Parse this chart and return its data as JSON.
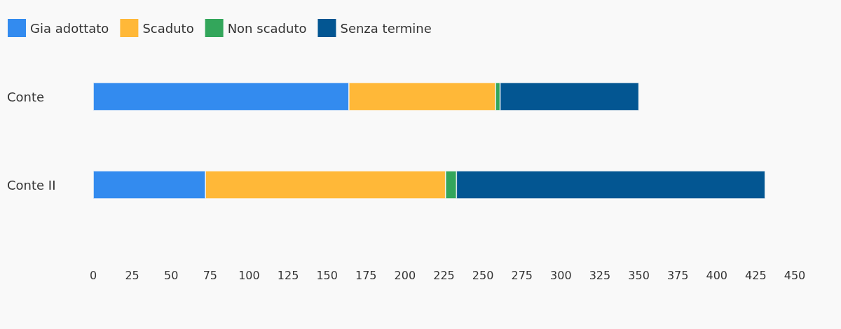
{
  "chart_data": {
    "type": "bar",
    "orientation": "horizontal",
    "stacked": true,
    "categories": [
      "Conte",
      "Conte II"
    ],
    "series": [
      {
        "name": "Gia adottato",
        "color": "#338bef",
        "values": [
          164,
          72
        ]
      },
      {
        "name": "Scaduto",
        "color": "#ffb838",
        "values": [
          94,
          154
        ]
      },
      {
        "name": "Non scaduto",
        "color": "#33a65b",
        "values": [
          3,
          7
        ]
      },
      {
        "name": "Senza termine",
        "color": "#035692",
        "values": [
          89,
          198
        ]
      }
    ],
    "xlim": [
      0,
      450
    ],
    "xticks": [
      0,
      25,
      50,
      75,
      100,
      125,
      150,
      175,
      200,
      225,
      250,
      275,
      300,
      325,
      350,
      375,
      400,
      425,
      450
    ],
    "grid": false,
    "legend": "top left"
  }
}
